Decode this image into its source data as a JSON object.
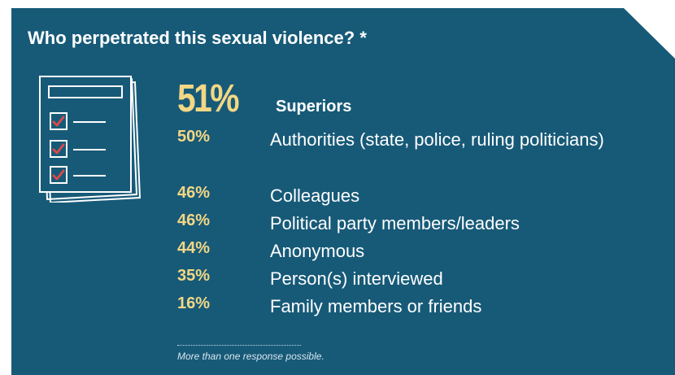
{
  "title": "Who perpetrated this sexual violence? *",
  "icon": "checklist-icon",
  "colors": {
    "background": "#175a78",
    "accent": "#f3d784",
    "text": "#ffffff",
    "check": "#d64b4b"
  },
  "chart_data": {
    "type": "table",
    "title": "Who perpetrated this sexual violence? *",
    "rows": [
      {
        "pct": "51%",
        "label": "Superiors",
        "value": 51
      },
      {
        "pct": "50%",
        "label": "Authorities (state, police, ruling politicians)",
        "value": 50
      },
      {
        "pct": "46%",
        "label": "Colleagues",
        "value": 46
      },
      {
        "pct": "46%",
        "label": "Political party members/leaders",
        "value": 46
      },
      {
        "pct": "44%",
        "label": "Anonymous",
        "value": 44
      },
      {
        "pct": "35%",
        "label": "Person(s) interviewed",
        "value": 35
      },
      {
        "pct": "16%",
        "label": "Family members or friends",
        "value": 16
      }
    ],
    "footnote": "More than one response possible."
  }
}
